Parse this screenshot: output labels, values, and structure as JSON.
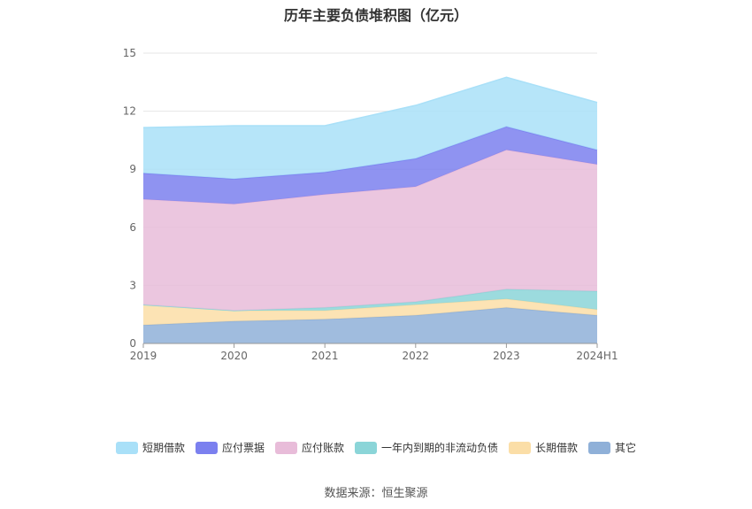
{
  "chart_data": {
    "type": "area",
    "stacked": true,
    "title": "历年主要负债堆积图（亿元）",
    "categories": [
      "2019",
      "2020",
      "2021",
      "2022",
      "2023",
      "2024H1"
    ],
    "ylim": [
      0,
      15
    ],
    "yticks": [
      0,
      3,
      6,
      9,
      12,
      15
    ],
    "grid": true,
    "legend_position": "bottom",
    "series": [
      {
        "name": "其它",
        "values": [
          0.95,
          1.15,
          1.25,
          1.45,
          1.85,
          1.45
        ],
        "color": "#8fb0d8"
      },
      {
        "name": "长期借款",
        "values": [
          1.05,
          0.55,
          0.45,
          0.55,
          0.45,
          0.3
        ],
        "color": "#fbdea7"
      },
      {
        "name": "一年内到期的非流动负债",
        "values": [
          0.0,
          0.0,
          0.15,
          0.15,
          0.5,
          0.95
        ],
        "color": "#8bd5d8"
      },
      {
        "name": "应付账款",
        "values": [
          5.45,
          5.5,
          5.85,
          5.95,
          7.2,
          6.55
        ],
        "color": "#e8bcd9"
      },
      {
        "name": "应付票据",
        "values": [
          1.35,
          1.3,
          1.15,
          1.45,
          1.2,
          0.75
        ],
        "color": "#7b80ef"
      },
      {
        "name": "短期借款",
        "values": [
          2.35,
          2.75,
          2.4,
          2.75,
          2.55,
          2.45
        ],
        "color": "#a9e0f8"
      }
    ]
  },
  "legend_order": [
    {
      "label": "短期借款",
      "color": "#a9e0f8"
    },
    {
      "label": "应付票据",
      "color": "#7b80ef"
    },
    {
      "label": "应付账款",
      "color": "#e8bcd9"
    },
    {
      "label": "一年内到期的非流动负债",
      "color": "#8bd5d8"
    },
    {
      "label": "长期借款",
      "color": "#fbdea7"
    },
    {
      "label": "其它",
      "color": "#8fb0d8"
    }
  ],
  "source_text": "数据来源：恒生聚源"
}
